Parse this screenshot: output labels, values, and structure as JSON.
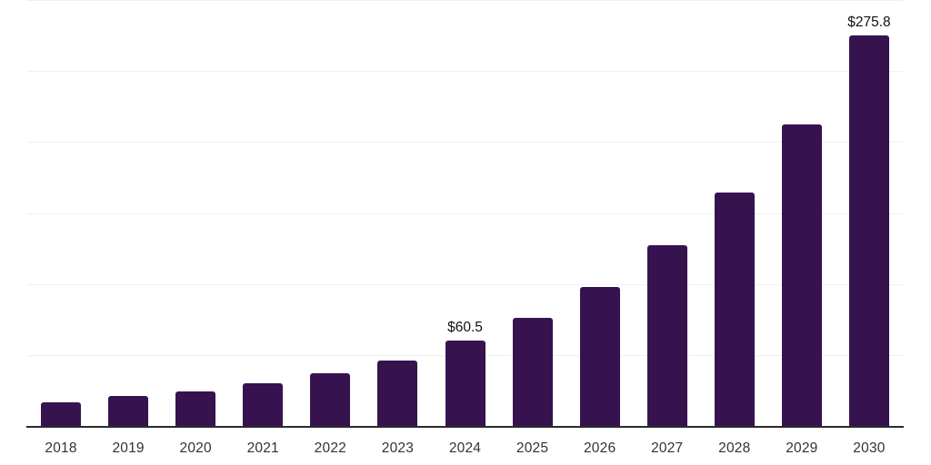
{
  "chart_data": {
    "type": "bar",
    "title": "",
    "xlabel": "",
    "ylabel": "",
    "categories": [
      "2018",
      "2019",
      "2020",
      "2021",
      "2022",
      "2023",
      "2024",
      "2025",
      "2026",
      "2027",
      "2028",
      "2029",
      "2030"
    ],
    "values": [
      17.5,
      21.8,
      24.9,
      30.8,
      37.8,
      47.0,
      60.5,
      76.8,
      98.5,
      127.7,
      164.8,
      213.2,
      275.8
    ],
    "annotations": [
      {
        "category": "2024",
        "text": "$60.5"
      },
      {
        "category": "2030",
        "text": "$275.8"
      }
    ],
    "ylim": [
      0,
      300
    ],
    "grid_step": 50,
    "grid": true,
    "legend": "none",
    "y_tick_labels_visible": false
  },
  "style": {
    "bar_color": "#36134F",
    "grid_color": "#f0f0f0",
    "axis_color": "#2b2b2b",
    "tick_label_color": "#333333",
    "annotation_color": "#111111",
    "background": "#ffffff"
  }
}
